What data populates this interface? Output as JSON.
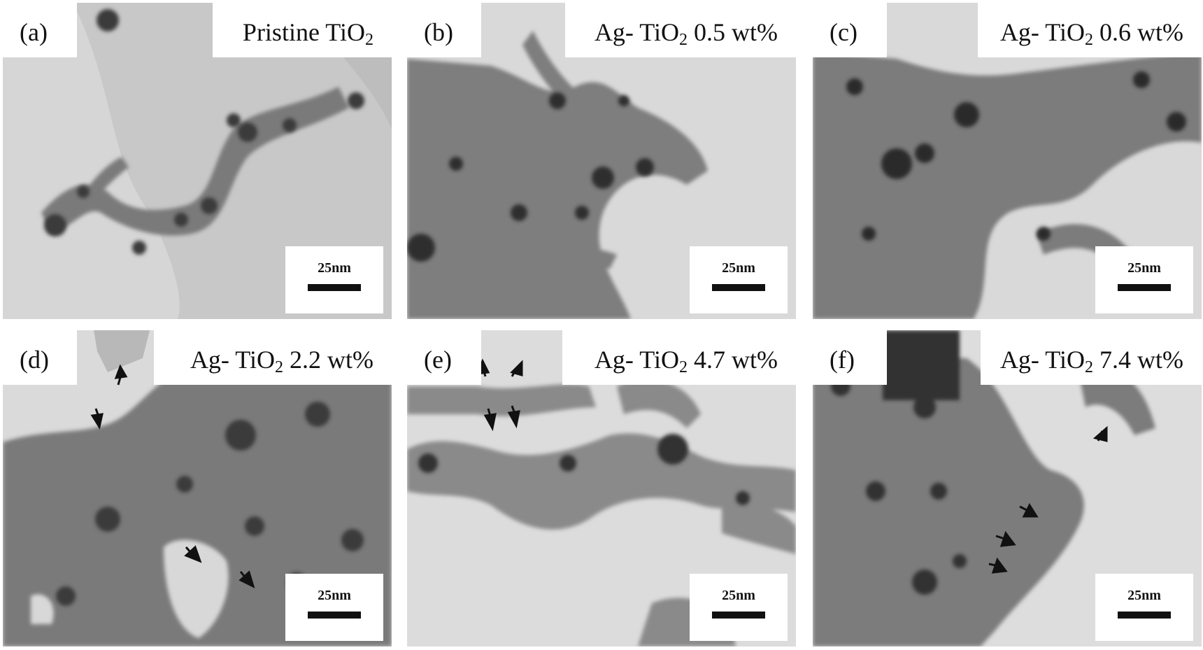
{
  "figure": {
    "panels": [
      {
        "id": "a",
        "letter": "(a)",
        "title_prefix": "Pristine TiO",
        "title_sub": "2",
        "title_suffix": "",
        "scale": "25nm"
      },
      {
        "id": "b",
        "letter": "(b)",
        "title_prefix": "Ag- TiO",
        "title_sub": "2",
        "title_suffix": " 0.5 wt%",
        "scale": "25nm"
      },
      {
        "id": "c",
        "letter": "(c)",
        "title_prefix": "Ag- TiO",
        "title_sub": "2",
        "title_suffix": " 0.6 wt%",
        "scale": "25nm"
      },
      {
        "id": "d",
        "letter": "(d)",
        "title_prefix": "Ag- TiO",
        "title_sub": "2",
        "title_suffix": " 2.2 wt%",
        "scale": "25nm"
      },
      {
        "id": "e",
        "letter": "(e)",
        "title_prefix": "Ag- TiO",
        "title_sub": "2",
        "title_suffix": " 4.7 wt%",
        "scale": "25nm"
      },
      {
        "id": "f",
        "letter": "(f)",
        "title_prefix": "Ag- TiO",
        "title_sub": "2",
        "title_suffix": " 7.4 wt%",
        "scale": "25nm"
      }
    ],
    "colors": {
      "background": "#dcdcdc",
      "particle": "#6e6e6e",
      "dark_particle": "#2a2a2a",
      "label_box": "#ffffff",
      "arrow": "#111111"
    }
  }
}
